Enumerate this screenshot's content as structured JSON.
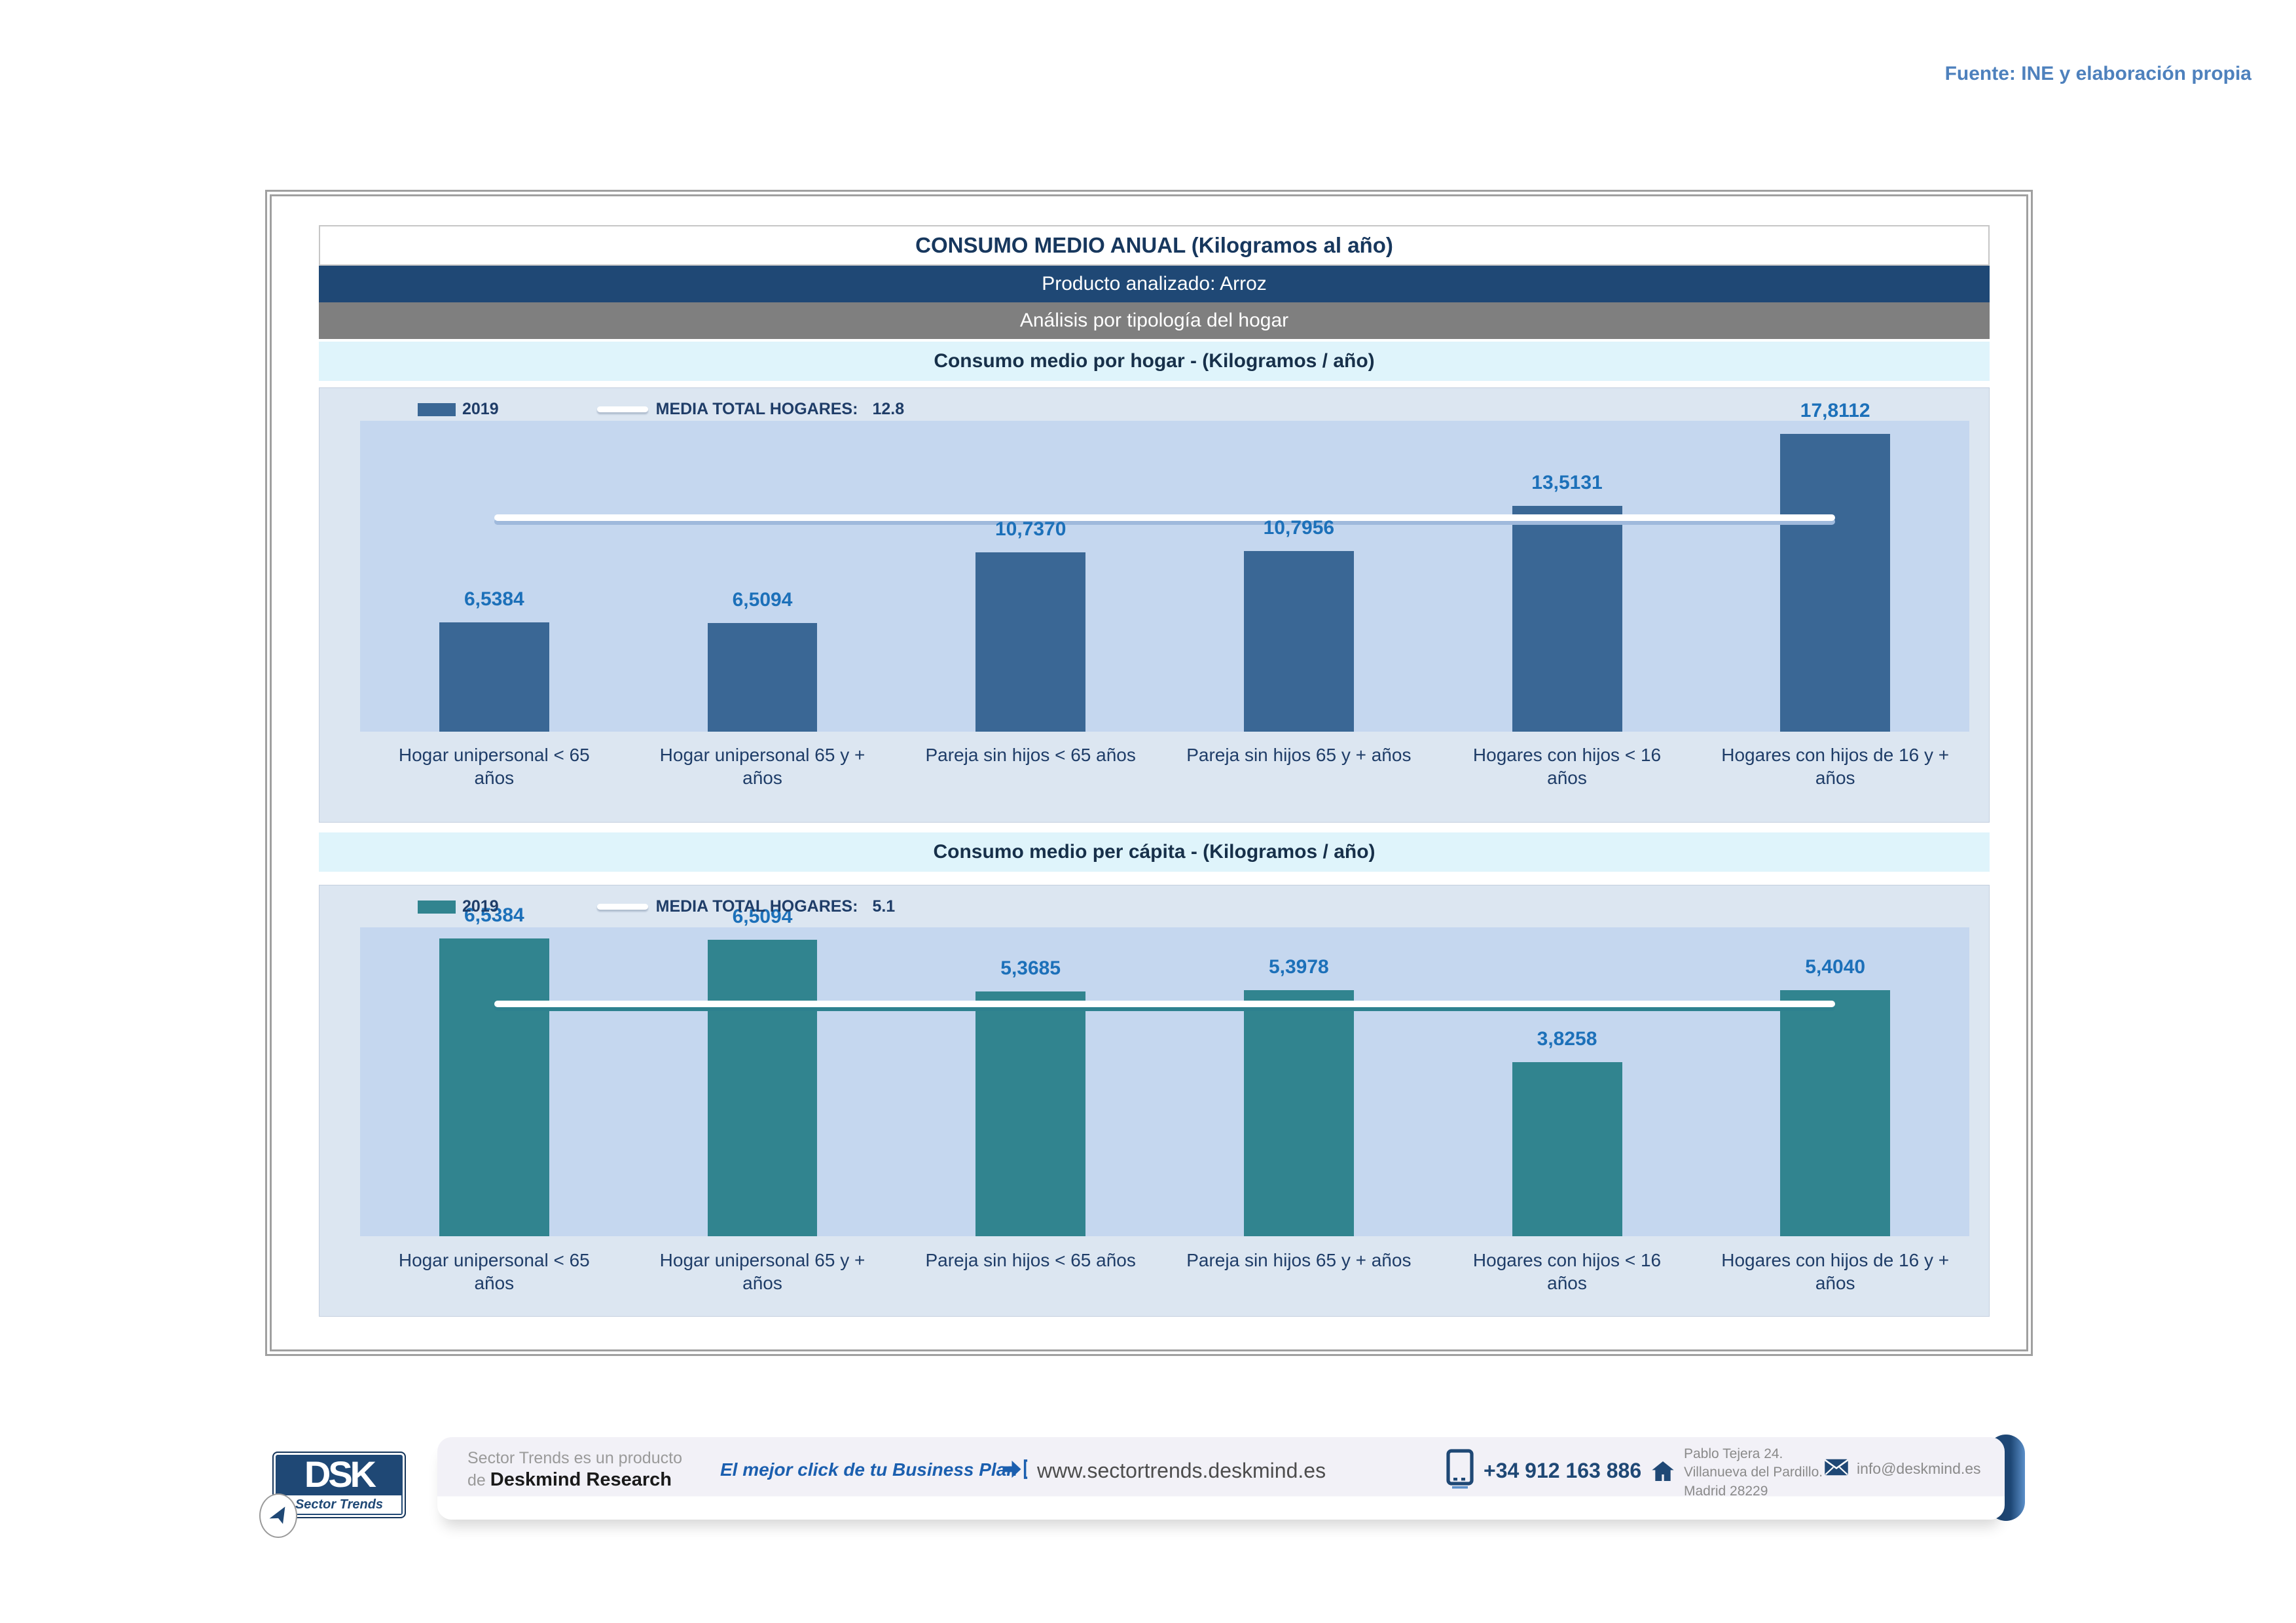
{
  "source_note": "Fuente: INE y elaboración propia",
  "report": {
    "title": "CONSUMO MEDIO ANUAL (Kilogramos al año)",
    "product_row": "Producto analizado: Arroz",
    "analysis_row": "Análisis por tipología del hogar"
  },
  "categories": [
    "Hogar unipersonal < 65 años",
    "Hogar unipersonal  65 y + años",
    "Pareja sin hijos < 65 años",
    "Pareja sin hijos 65 y + años",
    "Hogares con hijos < 16 años",
    "Hogares con hijos de 16 y + años"
  ],
  "chart_data": [
    {
      "type": "bar",
      "title": "Consumo medio por hogar -  (Kilogramos / año)",
      "categories": [
        "Hogar unipersonal < 65 años",
        "Hogar unipersonal  65 y + años",
        "Pareja sin hijos < 65 años",
        "Pareja sin hijos 65 y + años",
        "Hogares con hijos < 16 años",
        "Hogares con hijos de 16 y + años"
      ],
      "series": [
        {
          "name": "2019",
          "values": [
            6.5384,
            6.5094,
            10.737,
            10.7956,
            13.5131,
            17.8112
          ]
        }
      ],
      "value_labels": [
        "6,5384",
        "6,5094",
        "10,7370",
        "10,7956",
        "13,5131",
        "17,8112"
      ],
      "mean_line": {
        "label": "MEDIA TOTAL  HOGARES:",
        "value": 12.8,
        "display": "12.8",
        "shadow_color": "#9FB9DC"
      },
      "ylim": [
        0,
        18.6
      ],
      "xlabel": "",
      "ylabel": "",
      "grid": false,
      "legend_position": "top-left",
      "bar_color": "#3A6795",
      "plot_bg": "#C5D7EF"
    },
    {
      "type": "bar",
      "title": "Consumo medio per cápita -  (Kilogramos / año)",
      "categories": [
        "Hogar unipersonal < 65 años",
        "Hogar unipersonal  65 y + años",
        "Pareja sin hijos < 65 años",
        "Pareja sin hijos 65 y + años",
        "Hogares con hijos < 16 años",
        "Hogares con hijos de 16 y + años"
      ],
      "series": [
        {
          "name": "2019",
          "values": [
            6.5384,
            6.5094,
            5.3685,
            5.3978,
            3.8258,
            5.404
          ]
        }
      ],
      "value_labels": [
        "6,5384",
        "6,5094",
        "5,3685",
        "5,3978",
        "3,8258",
        "5,4040"
      ],
      "mean_line": {
        "label": "MEDIA TOTAL  HOGARES:",
        "value": 5.1,
        "display": "5.1",
        "shadow_color": "#2E818F"
      },
      "ylim": [
        0,
        6.78
      ],
      "xlabel": "",
      "ylabel": "",
      "grid": false,
      "legend_position": "top-left",
      "bar_color": "#31848F",
      "plot_bg": "#C5D7EF"
    }
  ],
  "footer": {
    "logo_text": "DSK",
    "logo_subtext": "Sector Trends",
    "producer_line1": "Sector Trends es un producto",
    "producer_line2_prefix": "de ",
    "producer_line2_bold": "Deskmind Research",
    "tagline": "El mejor click de tu Business Plan",
    "website": "www.sectortrends.deskmind.es",
    "phone": "+34 912 163 886",
    "address_lines": [
      "Pablo Tejera 24.",
      "Villanueva del Pardillo.",
      "Madrid 28229"
    ],
    "email": "info@deskmind.es"
  }
}
